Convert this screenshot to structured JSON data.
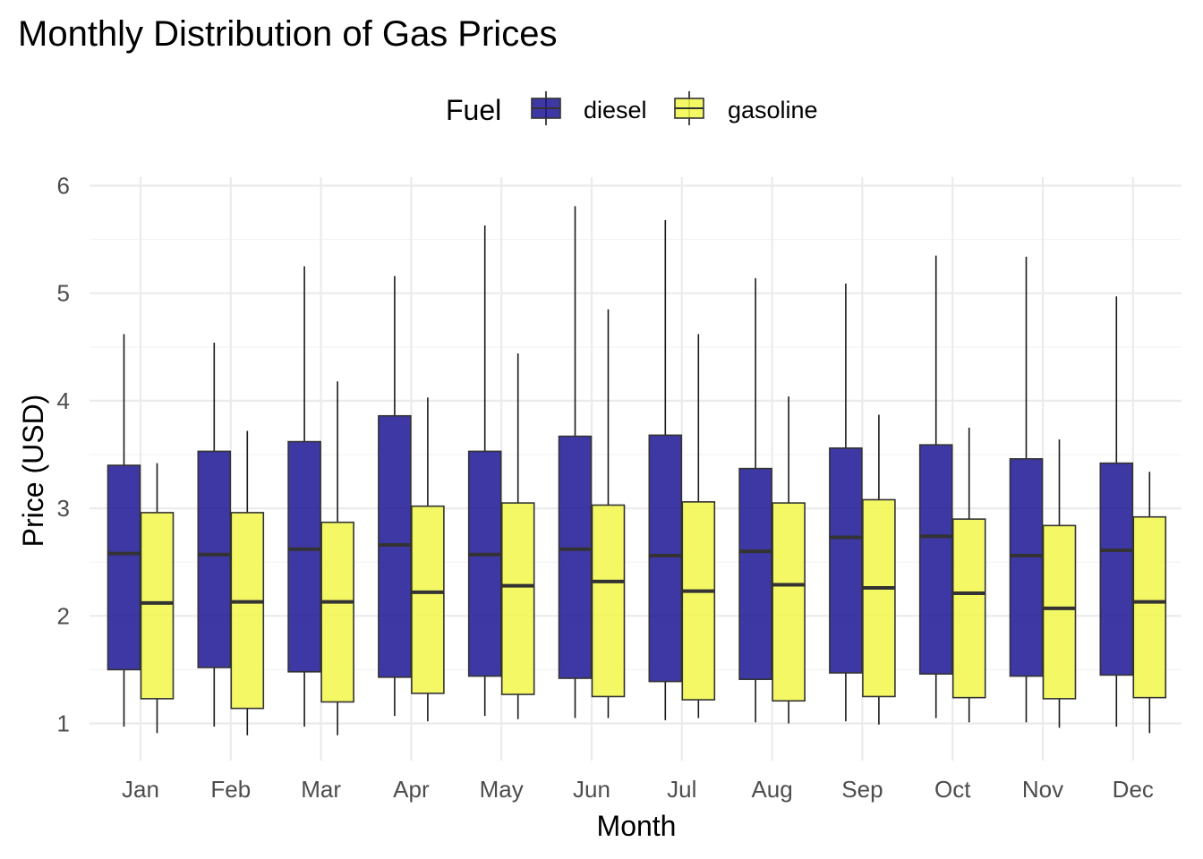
{
  "chart_data": {
    "type": "boxplot",
    "title": "Monthly Distribution of Gas Prices",
    "xlabel": "Month",
    "ylabel": "Price (USD)",
    "ylim": [
      0.7,
      6.1
    ],
    "yticks": [
      1,
      2,
      3,
      4,
      5,
      6
    ],
    "grid": true,
    "legend": {
      "title": "Fuel",
      "position": "top"
    },
    "categories": [
      "Jan",
      "Feb",
      "Mar",
      "Apr",
      "May",
      "Jun",
      "Jul",
      "Aug",
      "Sep",
      "Oct",
      "Nov",
      "Dec"
    ],
    "series": [
      {
        "name": "diesel",
        "color": "#1c1595",
        "boxes": [
          {
            "min": 0.97,
            "q1": 1.5,
            "median": 2.58,
            "q3": 3.4,
            "max": 4.62
          },
          {
            "min": 0.97,
            "q1": 1.52,
            "median": 2.57,
            "q3": 3.53,
            "max": 4.54
          },
          {
            "min": 0.97,
            "q1": 1.48,
            "median": 2.62,
            "q3": 3.62,
            "max": 5.25
          },
          {
            "min": 1.07,
            "q1": 1.43,
            "median": 2.66,
            "q3": 3.86,
            "max": 5.16
          },
          {
            "min": 1.07,
            "q1": 1.44,
            "median": 2.57,
            "q3": 3.53,
            "max": 5.63
          },
          {
            "min": 1.05,
            "q1": 1.42,
            "median": 2.62,
            "q3": 3.67,
            "max": 5.81
          },
          {
            "min": 1.03,
            "q1": 1.39,
            "median": 2.56,
            "q3": 3.68,
            "max": 5.68
          },
          {
            "min": 1.01,
            "q1": 1.41,
            "median": 2.6,
            "q3": 3.37,
            "max": 5.14
          },
          {
            "min": 1.02,
            "q1": 1.47,
            "median": 2.73,
            "q3": 3.56,
            "max": 5.09
          },
          {
            "min": 1.05,
            "q1": 1.46,
            "median": 2.74,
            "q3": 3.59,
            "max": 5.35
          },
          {
            "min": 1.01,
            "q1": 1.44,
            "median": 2.56,
            "q3": 3.46,
            "max": 5.34
          },
          {
            "min": 0.97,
            "q1": 1.45,
            "median": 2.61,
            "q3": 3.42,
            "max": 4.97
          }
        ]
      },
      {
        "name": "gasoline",
        "color": "#f2f74a",
        "boxes": [
          {
            "min": 0.91,
            "q1": 1.23,
            "median": 2.12,
            "q3": 2.96,
            "max": 3.42
          },
          {
            "min": 0.89,
            "q1": 1.14,
            "median": 2.13,
            "q3": 2.96,
            "max": 3.72
          },
          {
            "min": 0.89,
            "q1": 1.2,
            "median": 2.13,
            "q3": 2.87,
            "max": 4.18
          },
          {
            "min": 1.02,
            "q1": 1.28,
            "median": 2.22,
            "q3": 3.02,
            "max": 4.03
          },
          {
            "min": 1.04,
            "q1": 1.27,
            "median": 2.28,
            "q3": 3.05,
            "max": 4.44
          },
          {
            "min": 1.05,
            "q1": 1.25,
            "median": 2.32,
            "q3": 3.03,
            "max": 4.85
          },
          {
            "min": 1.05,
            "q1": 1.22,
            "median": 2.23,
            "q3": 3.06,
            "max": 4.62
          },
          {
            "min": 1.0,
            "q1": 1.21,
            "median": 2.29,
            "q3": 3.05,
            "max": 4.04
          },
          {
            "min": 0.99,
            "q1": 1.25,
            "median": 2.26,
            "q3": 3.08,
            "max": 3.87
          },
          {
            "min": 1.01,
            "q1": 1.24,
            "median": 2.21,
            "q3": 2.9,
            "max": 3.75
          },
          {
            "min": 0.96,
            "q1": 1.23,
            "median": 2.07,
            "q3": 2.84,
            "max": 3.64
          },
          {
            "min": 0.91,
            "q1": 1.24,
            "median": 2.13,
            "q3": 2.92,
            "max": 3.34
          }
        ]
      }
    ]
  }
}
